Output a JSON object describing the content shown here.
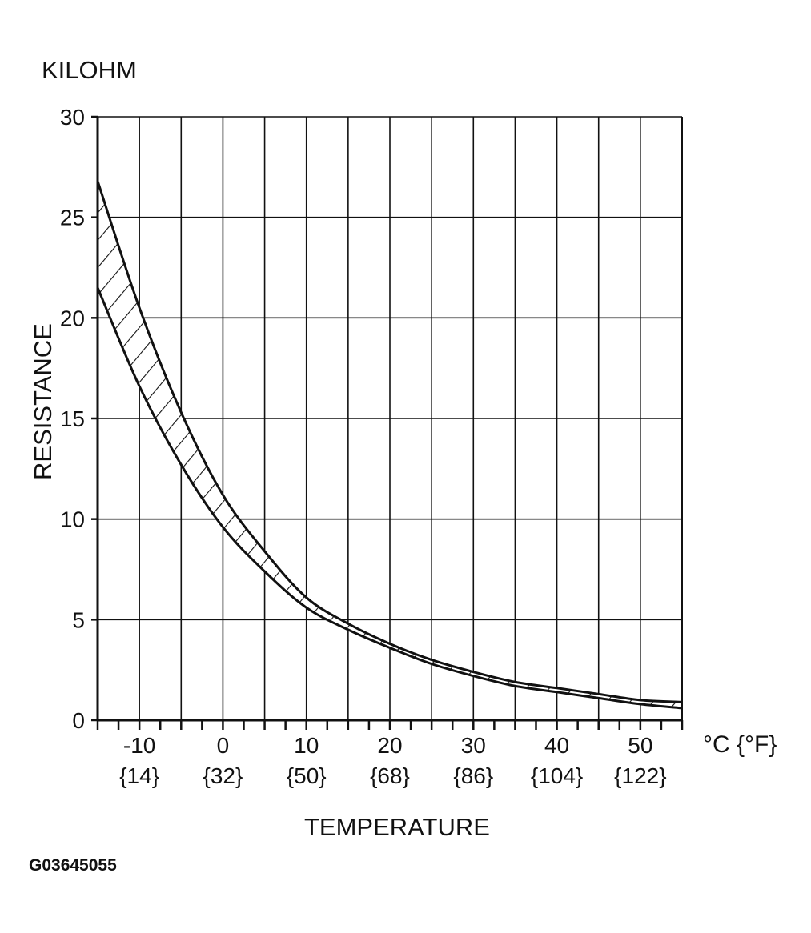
{
  "chart_data": {
    "type": "area",
    "unit_label": "KILOHM",
    "ylabel": "RESISTANCE",
    "xlabel": "TEMPERATURE",
    "x_unit": "°C {°F}",
    "figure_code": "G03645055",
    "xlim": [
      -15,
      55
    ],
    "ylim": [
      0,
      30
    ],
    "yticks": [
      "0",
      "5",
      "10",
      "15",
      "20",
      "25",
      "30"
    ],
    "xticks_c": [
      "-10",
      "0",
      "10",
      "20",
      "30",
      "40",
      "50"
    ],
    "xticks_f": [
      "{14}",
      "{32}",
      "{50}",
      "{68}",
      "{86}",
      "{104}",
      "{122}"
    ],
    "grid": true,
    "series": [
      {
        "role": "upper bound",
        "x": [
          -15,
          -10,
          -5,
          0,
          5,
          10,
          15,
          20,
          25,
          30,
          35,
          40,
          45,
          50,
          55
        ],
        "values": [
          26.8,
          20.5,
          15.3,
          11.2,
          8.4,
          6.1,
          4.8,
          3.8,
          3.0,
          2.4,
          1.9,
          1.6,
          1.3,
          1.0,
          0.9
        ]
      },
      {
        "role": "lower bound",
        "x": [
          -15,
          -10,
          -5,
          0,
          5,
          10,
          15,
          20,
          25,
          30,
          35,
          40,
          45,
          50,
          55
        ],
        "values": [
          21.5,
          16.6,
          12.7,
          9.6,
          7.4,
          5.6,
          4.5,
          3.6,
          2.8,
          2.2,
          1.7,
          1.4,
          1.1,
          0.8,
          0.6
        ]
      }
    ]
  }
}
